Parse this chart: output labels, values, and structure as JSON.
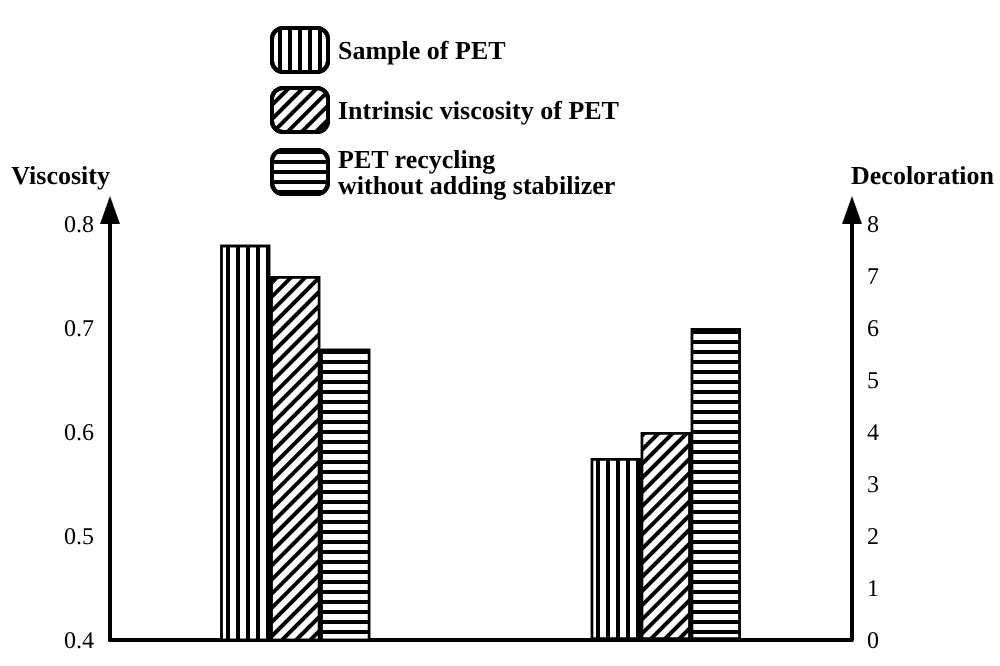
{
  "chart_data": {
    "type": "bar",
    "ylabel": "Viscosity",
    "y2label": "Decoloration",
    "categories": [
      null,
      null
    ],
    "series": [
      {
        "name": "Sample of PET",
        "color": "#000000",
        "values": [
          0.78,
          null
        ]
      },
      {
        "name": "Intrinsic viscosity of PET",
        "color": "#000000",
        "values": [
          0.75,
          null
        ]
      },
      {
        "name": "PET recycling\nwithout adding stabilizer",
        "color": "#000000",
        "values": [
          0.68,
          null
        ]
      },
      {
        "color": "#000000",
        "axis": "y2",
        "values": [
          null,
          3.5
        ]
      },
      {
        "color": "#000000",
        "axis": "y2",
        "values": [
          null,
          4.0
        ]
      },
      {
        "color": "#000000",
        "axis": "y2",
        "values": [
          null,
          6.0
        ]
      }
    ],
    "ylim": [
      0.4,
      0.8
    ],
    "yticks": [
      0.4,
      0.5,
      0.6,
      0.7,
      0.8
    ],
    "y2lim": [
      0,
      8
    ],
    "y2ticks": [
      0,
      1,
      2,
      3,
      4,
      5,
      6,
      7,
      8
    ],
    "grid": false,
    "legend": "top"
  }
}
